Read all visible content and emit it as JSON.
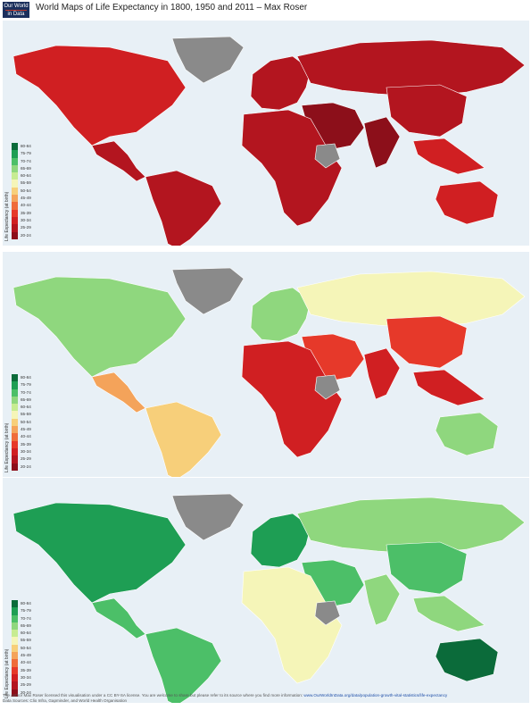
{
  "header": {
    "logo_line1": "Our World",
    "logo_line2": "in Data",
    "title": "World Maps of Life Expectancy in 1800, 1950 and 2011 – Max Roser"
  },
  "legend": {
    "axis_label": "Life Expectancy (at birth)",
    "ticks": [
      "80-84",
      "75-79",
      "70-74",
      "65-69",
      "60-64",
      "55-59",
      "50-54",
      "45-49",
      "40-44",
      "35-39",
      "30-34",
      "25-29",
      "20-24"
    ],
    "colors": [
      "#0b6b3a",
      "#1e9e54",
      "#4cbf68",
      "#8fd77e",
      "#c7ec92",
      "#f5f5b8",
      "#f7cf7a",
      "#f4a35a",
      "#ef6c3a",
      "#e6392a",
      "#d01f22",
      "#b3151f",
      "#8c0f1a"
    ]
  },
  "maps": [
    {
      "year": "1800",
      "colors": {
        "north_america": "#d01f22",
        "central_america": "#b3151f",
        "south_america": "#b3151f",
        "greenland": "#8a8a8a",
        "europe": "#b3151f",
        "russia": "#b3151f",
        "africa": "#b3151f",
        "middle_east": "#8c0f1a",
        "india": "#8c0f1a",
        "china": "#b3151f",
        "southeast_asia": "#d01f22",
        "australia": "#d01f22",
        "ethiopia": "#8a8a8a"
      }
    },
    {
      "year": "1950",
      "colors": {
        "north_america": "#8fd77e",
        "central_america": "#f4a35a",
        "south_america": "#f7cf7a",
        "greenland": "#8a8a8a",
        "europe": "#8fd77e",
        "russia": "#f5f5b8",
        "africa": "#d01f22",
        "middle_east": "#e6392a",
        "india": "#d01f22",
        "china": "#e6392a",
        "southeast_asia": "#d01f22",
        "australia": "#8fd77e",
        "ethiopia": "#8a8a8a"
      }
    },
    {
      "year": "2011",
      "colors": {
        "north_america": "#1e9e54",
        "central_america": "#4cbf68",
        "south_america": "#4cbf68",
        "greenland": "#8a8a8a",
        "europe": "#1e9e54",
        "russia": "#8fd77e",
        "africa": "#f5f5b8",
        "middle_east": "#4cbf68",
        "india": "#8fd77e",
        "china": "#4cbf68",
        "southeast_asia": "#8fd77e",
        "australia": "#0b6b3a",
        "ethiopia": "#8a8a8a"
      }
    }
  ],
  "footer": {
    "credit": "The author Max Roser licensed this visualisation under a CC BY-SA license. You are welcome to share but please refer to its source where you find more information:",
    "link": "www.OurWorldInData.org/data/population-growth-vital-statistics/life-expectancy",
    "sources": "Data Sources: Clio Infra, Gapminder, and World Health Organisation"
  }
}
